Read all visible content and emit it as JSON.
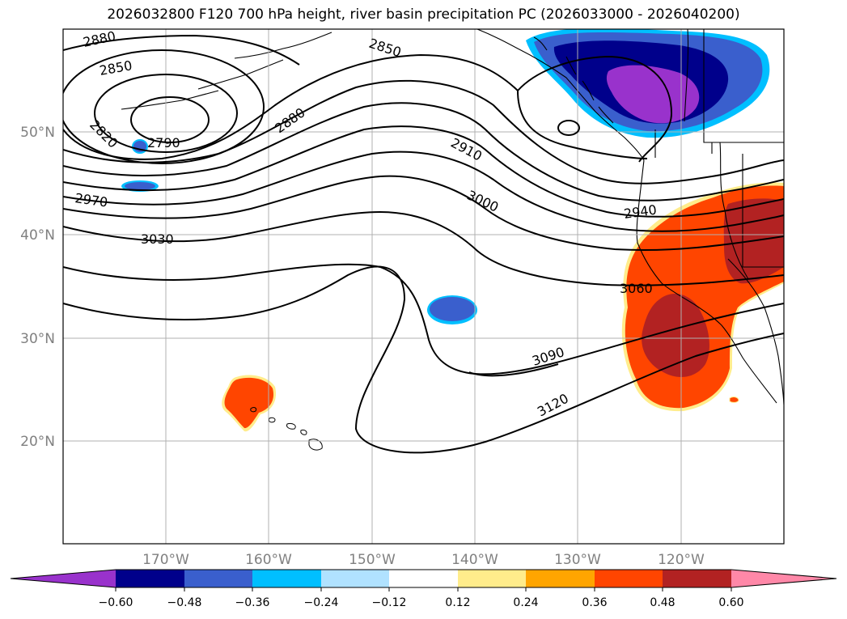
{
  "title": "2026032800 F120 700 hPa height, river basin precipitation PC (2026033000 - 2026040200)",
  "map": {
    "lat_labels": [
      "50°N",
      "40°N",
      "30°N",
      "20°N"
    ],
    "lon_labels": [
      "170°W",
      "160°W",
      "150°W",
      "140°W",
      "130°W",
      "120°W"
    ],
    "contour_labels": [
      "2880",
      "2850",
      "2820",
      "2790",
      "2970",
      "3030",
      "2880",
      "2850",
      "2910",
      "3000",
      "2940",
      "3060",
      "3090",
      "3120"
    ],
    "colors": {
      "coast": "#000000",
      "grid": "#b0b0b0"
    }
  },
  "colorbar": {
    "labels": [
      "−0.60",
      "−0.48",
      "−0.36",
      "−0.24",
      "−0.12",
      "0.12",
      "0.24",
      "0.36",
      "0.48",
      "0.60"
    ],
    "colors": [
      "#9932CC",
      "#00008B",
      "#3A5FCD",
      "#00BFFF",
      "#B0E2FF",
      "#FFFFFF",
      "#FFEC8B",
      "#FFA500",
      "#FF4500",
      "#B22222",
      "#FF88A8"
    ]
  }
}
